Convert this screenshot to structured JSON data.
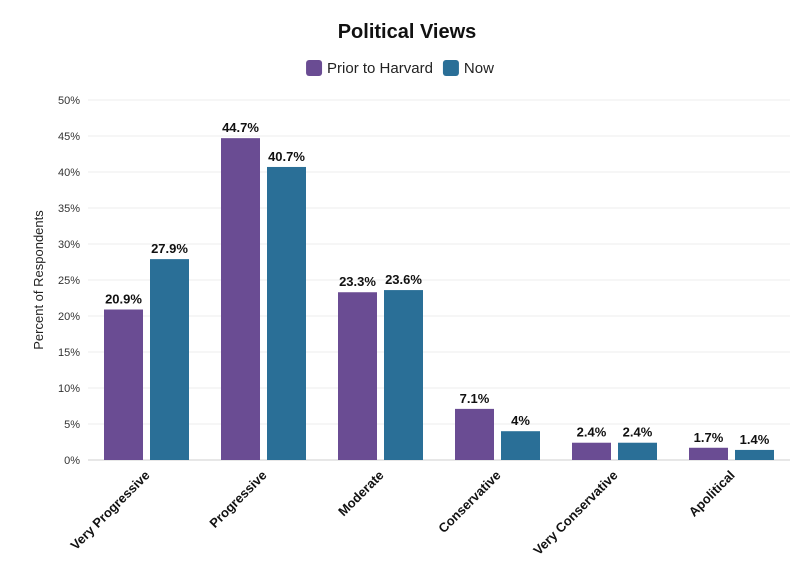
{
  "chart_data": {
    "type": "bar",
    "title": "Political Views",
    "xlabel": "",
    "ylabel": "Percent of Respondents",
    "categories": [
      "Very Progressive",
      "Progressive",
      "Moderate",
      "Conservative",
      "Very Conservative",
      "Apolitical"
    ],
    "series": [
      {
        "name": "Prior to Harvard",
        "color": "#6a4c93",
        "values": [
          20.9,
          44.7,
          23.3,
          7.1,
          2.4,
          1.7
        ],
        "labels": [
          "20.9%",
          "44.7%",
          "23.3%",
          "7.1%",
          "2.4%",
          "1.7%"
        ]
      },
      {
        "name": "Now",
        "color": "#2a6f97",
        "values": [
          27.9,
          40.7,
          23.6,
          4.0,
          2.4,
          1.4
        ],
        "labels": [
          "27.9%",
          "40.7%",
          "23.6%",
          "4%",
          "2.4%",
          "1.4%"
        ]
      }
    ],
    "ylim": [
      0,
      50
    ],
    "yticks": [
      0,
      5,
      10,
      15,
      20,
      25,
      30,
      35,
      40,
      45,
      50
    ],
    "ytick_labels": [
      "0%",
      "5%",
      "10%",
      "15%",
      "20%",
      "25%",
      "30%",
      "35%",
      "40%",
      "45%",
      "50%"
    ],
    "grid": true,
    "legend_position": "top-center"
  }
}
